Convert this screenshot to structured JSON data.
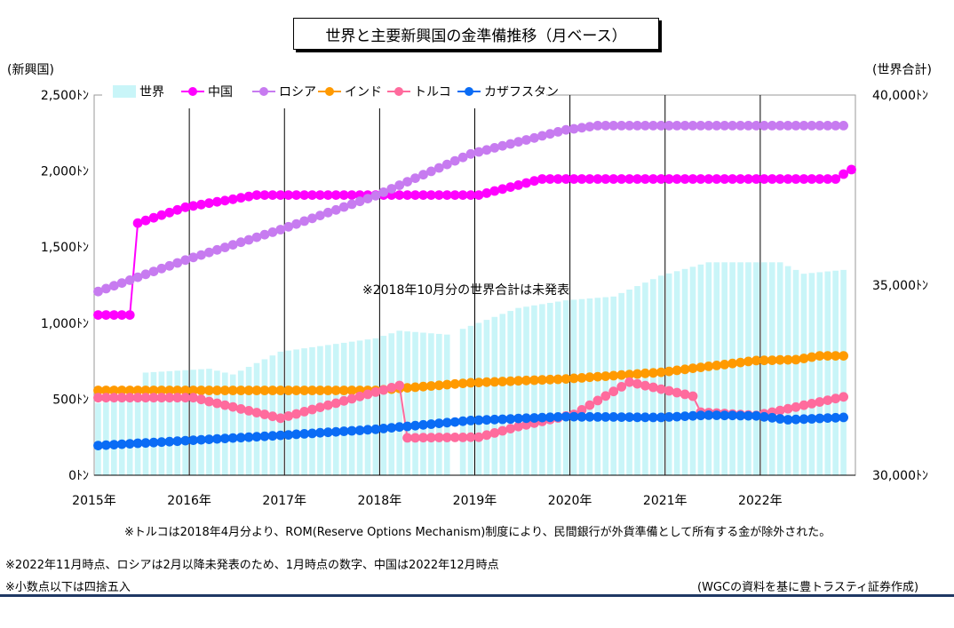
{
  "title": "世界と主要新興国の金準備推移（月ベース）",
  "left_axis_title": "(新興国)",
  "right_axis_title": "(世界合計)",
  "annotation": "※2018年10月分の世界合計は未発表",
  "notes": {
    "turkey": "※トルコは2018年4月分より、ROM(Reserve Options Mechanism)制度により、民間銀行が外貨準備として所有する金が除外された。",
    "timing": "※2022年11月時点、ロシアは2月以降未発表のため、1月時点の数字、中国は2022年12月時点",
    "rounding": "※小数点以下は四捨五入",
    "source": "(WGCの資料を基に豊トラスティ証券作成)"
  },
  "colors": {
    "world": "#c9f5f8",
    "china": "#ff00ff",
    "russia": "#c77bf0",
    "india": "#ff9a00",
    "turkey": "#ff6b9d",
    "kazakhstan": "#0a6cf5",
    "gridline": "#000000",
    "bottom_rule": "#1f3864"
  },
  "chart_data": {
    "type": "bar+line",
    "x_start": "2015-01",
    "x_end": "2022-12",
    "x_tick_labels": [
      "2015年",
      "2016年",
      "2017年",
      "2018年",
      "2019年",
      "2020年",
      "2021年",
      "2022年"
    ],
    "y_left": {
      "ticks": [
        "0ﾄﾝ",
        "500ﾄﾝ",
        "1,000ﾄﾝ",
        "1,500ﾄﾝ",
        "2,000ﾄﾝ",
        "2,500ﾄﾝ"
      ],
      "range": [
        0,
        2500
      ]
    },
    "y_right": {
      "ticks": [
        "30,000ﾄﾝ",
        "35,000ﾄﾝ",
        "40,000ﾄﾝ"
      ],
      "range": [
        30000,
        40000
      ]
    },
    "grid": "vertical at year boundaries",
    "legend_position": "top-left",
    "series": [
      {
        "name": "世界",
        "type": "bar",
        "axis": "right",
        "color_key": "world",
        "missing": [
          "2018-10"
        ],
        "anchors": [
          [
            "2015-01",
            31900
          ],
          [
            "2015-06",
            32000
          ],
          [
            "2015-07",
            32700
          ],
          [
            "2016-03",
            32800
          ],
          [
            "2016-06",
            32650
          ],
          [
            "2016-12",
            33250
          ],
          [
            "2017-12",
            33600
          ],
          [
            "2018-03",
            33800
          ],
          [
            "2018-09",
            33700
          ],
          [
            "2018-11",
            33850
          ],
          [
            "2019-06",
            34400
          ],
          [
            "2019-12",
            34600
          ],
          [
            "2020-06",
            34700
          ],
          [
            "2020-12",
            35250
          ],
          [
            "2021-06",
            35600
          ],
          [
            "2021-12",
            35600
          ],
          [
            "2022-03",
            35600
          ],
          [
            "2022-06",
            35300
          ],
          [
            "2022-11",
            35400
          ]
        ]
      },
      {
        "name": "中国",
        "type": "line",
        "axis": "left",
        "color_key": "china",
        "anchors": [
          [
            "2015-01",
            1054
          ],
          [
            "2015-05",
            1054
          ],
          [
            "2015-06",
            1658
          ],
          [
            "2015-12",
            1762
          ],
          [
            "2016-09",
            1842
          ],
          [
            "2019-01",
            1842
          ],
          [
            "2019-09",
            1948
          ],
          [
            "2022-10",
            1948
          ],
          [
            "2022-11",
            1980
          ],
          [
            "2022-12",
            2010
          ]
        ]
      },
      {
        "name": "ロシア",
        "type": "line",
        "axis": "left",
        "color_key": "russia",
        "anchors": [
          [
            "2015-01",
            1208
          ],
          [
            "2015-12",
            1415
          ],
          [
            "2016-12",
            1615
          ],
          [
            "2017-12",
            1838
          ],
          [
            "2018-12",
            2113
          ],
          [
            "2019-12",
            2271
          ],
          [
            "2020-04",
            2299
          ],
          [
            "2022-11",
            2299
          ]
        ]
      },
      {
        "name": "インド",
        "type": "line",
        "axis": "left",
        "color_key": "india",
        "anchors": [
          [
            "2015-01",
            558
          ],
          [
            "2017-12",
            558
          ],
          [
            "2018-12",
            608
          ],
          [
            "2019-12",
            633
          ],
          [
            "2020-12",
            677
          ],
          [
            "2021-12",
            754
          ],
          [
            "2022-05",
            760
          ],
          [
            "2022-08",
            785
          ],
          [
            "2022-11",
            785
          ]
        ]
      },
      {
        "name": "トルコ",
        "type": "line",
        "axis": "left",
        "color_key": "turkey",
        "anchors": [
          [
            "2015-01",
            510
          ],
          [
            "2016-01",
            510
          ],
          [
            "2016-12",
            375
          ],
          [
            "2017-06",
            460
          ],
          [
            "2018-03",
            590
          ],
          [
            "2018-04",
            246
          ],
          [
            "2019-01",
            250
          ],
          [
            "2019-06",
            320
          ],
          [
            "2020-01",
            400
          ],
          [
            "2020-08",
            612
          ],
          [
            "2021-04",
            520
          ],
          [
            "2021-05",
            415
          ],
          [
            "2021-12",
            393
          ],
          [
            "2022-11",
            515
          ]
        ]
      },
      {
        "name": "カザフスタン",
        "type": "line",
        "axis": "left",
        "color_key": "kazakhstan",
        "anchors": [
          [
            "2015-01",
            195
          ],
          [
            "2016-12",
            262
          ],
          [
            "2017-12",
            302
          ],
          [
            "2018-12",
            360
          ],
          [
            "2019-12",
            385
          ],
          [
            "2020-12",
            380
          ],
          [
            "2021-06",
            395
          ],
          [
            "2021-12",
            390
          ],
          [
            "2022-04",
            365
          ],
          [
            "2022-11",
            380
          ]
        ]
      }
    ]
  }
}
